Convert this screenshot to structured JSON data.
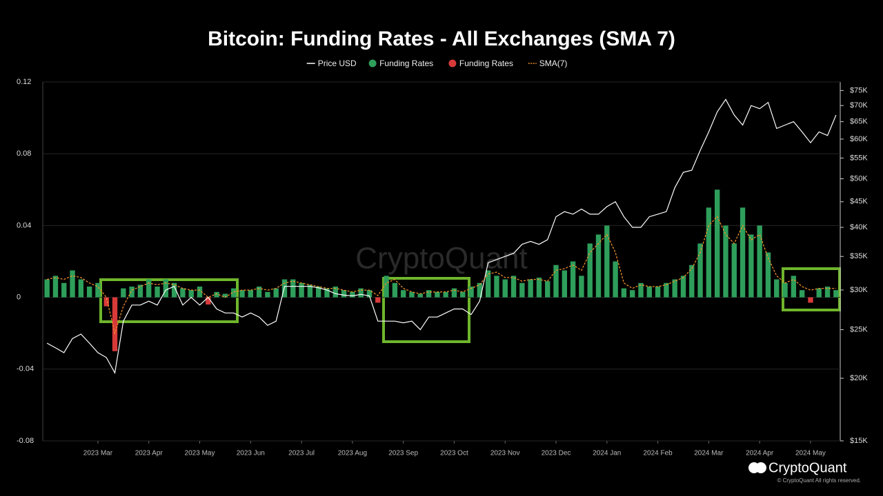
{
  "chart_data": {
    "type": "bar",
    "title": "Bitcoin: Funding Rates - All Exchanges (SMA 7)",
    "watermark": "CryptoQuant",
    "brand": "CryptoQuant",
    "copyright": "© CryptoQuant All rights reserved.",
    "categories": [
      null,
      null,
      null,
      null,
      null,
      null,
      "2023 Mar",
      null,
      null,
      null,
      null,
      null,
      "2023 Apr",
      null,
      null,
      null,
      null,
      null,
      "2023 May",
      null,
      null,
      null,
      null,
      null,
      "2023 Jun",
      null,
      null,
      null,
      null,
      null,
      "2023 Jul",
      null,
      null,
      null,
      null,
      null,
      "2023 Aug",
      null,
      null,
      null,
      null,
      null,
      "2023 Sep",
      null,
      null,
      null,
      null,
      null,
      "2023 Oct",
      null,
      null,
      null,
      null,
      null,
      "2023 Nov",
      null,
      null,
      null,
      null,
      null,
      "2023 Dec",
      null,
      null,
      null,
      null,
      null,
      "2024 Jan",
      null,
      null,
      null,
      null,
      null,
      "2024 Feb",
      null,
      null,
      null,
      null,
      null,
      "2024 Mar",
      null,
      null,
      null,
      null,
      null,
      "2024 Apr",
      null,
      null,
      null,
      null,
      null,
      "2024 May",
      null,
      null,
      null
    ],
    "ylim": [
      -0.08,
      0.12
    ],
    "yticks": [
      -0.08,
      -0.04,
      0,
      0.04,
      0.08,
      0.12
    ],
    "y2lim": [
      15000,
      78000
    ],
    "y2log": true,
    "y2ticks": [
      {
        "value": 15000,
        "label": "$15K"
      },
      {
        "value": 20000,
        "label": "$20K"
      },
      {
        "value": 25000,
        "label": "$25K"
      },
      {
        "value": 30000,
        "label": "$30K"
      },
      {
        "value": 35000,
        "label": "$35K"
      },
      {
        "value": 40000,
        "label": "$40K"
      },
      {
        "value": 45000,
        "label": "$45K"
      },
      {
        "value": 50000,
        "label": "$50K"
      },
      {
        "value": 55000,
        "label": "$55K"
      },
      {
        "value": 60000,
        "label": "$60K"
      },
      {
        "value": 65000,
        "label": "$65K"
      },
      {
        "value": 70000,
        "label": "$70K"
      },
      {
        "value": 75000,
        "label": "$75K"
      }
    ],
    "grid": true,
    "series": [
      {
        "name": "Price USD",
        "type": "line",
        "axis": "y2",
        "color": "#ffffff",
        "values": [
          23500,
          23000,
          22500,
          24000,
          24500,
          23500,
          22500,
          22000,
          20500,
          26000,
          28000,
          28000,
          28500,
          28000,
          30000,
          30500,
          28000,
          29000,
          28000,
          29000,
          27500,
          27000,
          27000,
          26500,
          27000,
          26500,
          25500,
          26000,
          30500,
          30500,
          30500,
          30500,
          30300,
          30000,
          29500,
          29300,
          29200,
          29400,
          29200,
          26000,
          26000,
          26000,
          25800,
          26000,
          25000,
          26500,
          26500,
          27000,
          27500,
          27500,
          26800,
          28500,
          34000,
          34500,
          35000,
          35500,
          37000,
          37500,
          37000,
          37800,
          42000,
          43000,
          42500,
          43500,
          42500,
          42500,
          44000,
          45000,
          42000,
          40000,
          40000,
          42000,
          42500,
          43000,
          48000,
          51500,
          52000,
          57000,
          62000,
          68000,
          72000,
          67000,
          64000,
          70000,
          69000,
          71000,
          63000,
          64000,
          65000,
          62000,
          59000,
          62000,
          61000,
          67000
        ]
      },
      {
        "name": "Funding Rates",
        "type": "bar",
        "color": "#2e9e5b",
        "values": [
          0.01,
          0.012,
          0.008,
          0.015,
          0.01,
          0.006,
          0.008,
          null,
          null,
          0.005,
          0.006,
          0.007,
          0.01,
          0.006,
          0.01,
          0.008,
          0.005,
          0.004,
          0.006,
          null,
          0.003,
          0.002,
          0.005,
          0.004,
          0.004,
          0.006,
          0.003,
          0.005,
          0.01,
          0.01,
          0.008,
          0.007,
          0.006,
          0.005,
          0.006,
          0.004,
          0.003,
          0.005,
          0.004,
          null,
          0.012,
          0.008,
          0.004,
          0.003,
          0.002,
          0.004,
          0.003,
          0.003,
          0.005,
          0.003,
          0.006,
          0.008,
          0.015,
          0.012,
          0.01,
          0.012,
          0.008,
          0.01,
          0.011,
          0.009,
          0.018,
          0.015,
          0.02,
          0.012,
          0.03,
          0.035,
          0.04,
          0.02,
          0.005,
          0.004,
          0.008,
          0.006,
          0.006,
          0.008,
          0.01,
          0.012,
          0.018,
          0.03,
          0.05,
          0.06,
          0.04,
          0.03,
          0.05,
          0.035,
          0.04,
          0.025,
          0.01,
          0.008,
          0.012,
          0.004,
          null,
          0.005,
          0.006,
          0.004
        ]
      },
      {
        "name": "Funding Rates",
        "type": "bar",
        "color": "#d83a3a",
        "values": [
          null,
          null,
          null,
          null,
          null,
          null,
          null,
          -0.005,
          -0.03,
          null,
          null,
          null,
          null,
          null,
          null,
          null,
          null,
          null,
          null,
          -0.004,
          null,
          null,
          null,
          null,
          null,
          null,
          null,
          null,
          null,
          null,
          null,
          null,
          null,
          null,
          null,
          null,
          null,
          null,
          null,
          -0.003,
          null,
          null,
          null,
          null,
          null,
          null,
          null,
          null,
          null,
          null,
          null,
          null,
          null,
          null,
          null,
          null,
          null,
          null,
          null,
          null,
          null,
          null,
          null,
          null,
          null,
          null,
          null,
          null,
          null,
          null,
          null,
          null,
          null,
          null,
          null,
          null,
          null,
          null,
          null,
          null,
          null,
          null,
          null,
          null,
          null,
          null,
          null,
          null,
          null,
          null,
          -0.003,
          null,
          null,
          null
        ]
      },
      {
        "name": "SMA(7)",
        "type": "line",
        "dashed": true,
        "color": "#f0902a",
        "values": [
          0.01,
          0.011,
          0.01,
          0.012,
          0.011,
          0.008,
          0.006,
          0,
          -0.02,
          -0.005,
          0.004,
          0.006,
          0.008,
          0.007,
          0.008,
          0.007,
          0.005,
          0.004,
          0.004,
          0,
          0.002,
          0,
          0.003,
          0.004,
          0.004,
          0.005,
          0.004,
          0.005,
          0.008,
          0.009,
          0.008,
          0.007,
          0.006,
          0.005,
          0.005,
          0.004,
          0.003,
          0.004,
          0.004,
          0.001,
          0.008,
          0.01,
          0.005,
          0.003,
          0.002,
          0.003,
          0.003,
          0.003,
          0.004,
          0.003,
          0.005,
          0.007,
          0.013,
          0.014,
          0.011,
          0.011,
          0.009,
          0.01,
          0.01,
          0.009,
          0.015,
          0.016,
          0.018,
          0.015,
          0.025,
          0.03,
          0.035,
          0.025,
          0.008,
          0.005,
          0.007,
          0.006,
          0.006,
          0.007,
          0.009,
          0.011,
          0.016,
          0.025,
          0.04,
          0.045,
          0.035,
          0.03,
          0.04,
          0.032,
          0.035,
          0.022,
          0.012,
          0.008,
          0.01,
          0.006,
          0.004,
          0.005,
          0.005,
          0.005
        ]
      }
    ]
  }
}
